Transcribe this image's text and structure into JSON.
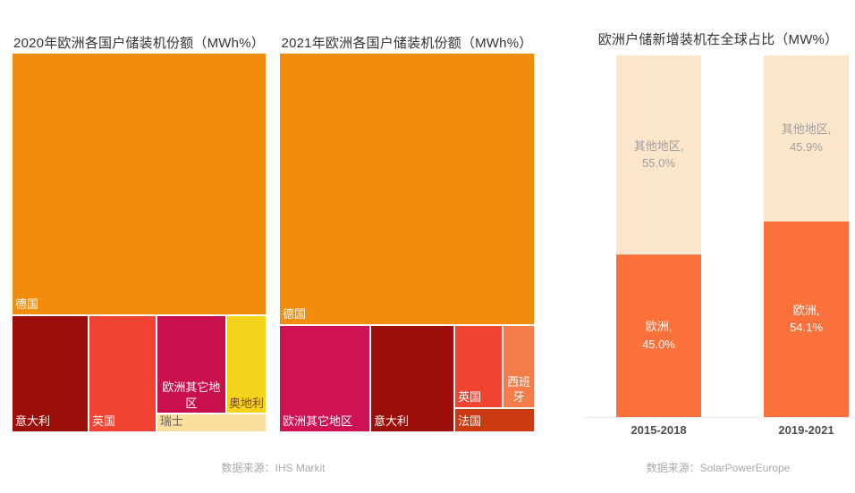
{
  "page": {
    "background": "#ffffff"
  },
  "footers": {
    "left": "数据来源：IHS Markit",
    "right": "数据来源：SolarPowerEurope"
  },
  "chart_data": [
    {
      "type": "treemap",
      "title": "2020年欧洲各国户储装机份额（MWh%）",
      "unit": "MWh%",
      "cells": [
        {
          "id": "germany",
          "label": "德国",
          "value": 69.0,
          "color": "#F28C0C",
          "text_color": "#FFFFFF"
        },
        {
          "id": "italy",
          "label": "意大利",
          "value": 9.1,
          "color": "#9E0E08",
          "text_color": "#FFFFFF"
        },
        {
          "id": "uk",
          "label": "英国",
          "value": 8.0,
          "color": "#F04331",
          "text_color": "#FFFFFF"
        },
        {
          "id": "other-europe",
          "label": "欧洲其它地区",
          "value": 6.9,
          "color": "#C8104E",
          "text_color": "#FFFFFF"
        },
        {
          "id": "austria",
          "label": "奥地利",
          "value": 3.9,
          "color": "#F4D41A",
          "text_color": "#7A4B22"
        },
        {
          "id": "switzerland",
          "label": "瑞士",
          "value": 1.9,
          "color": "#FADE9B",
          "text_color": "#6B6157"
        }
      ],
      "source": "数据来源：IHS Markit"
    },
    {
      "type": "treemap",
      "title": "2021年欧洲各国户储装机份额（MWh%）",
      "unit": "MWh%",
      "cells": [
        {
          "id": "germany",
          "label": "德国",
          "value": 71.6,
          "color": "#F28C0C",
          "text_color": "#FFFFFF"
        },
        {
          "id": "other-europe",
          "label": "欧洲其它地区",
          "value": 9.8,
          "color": "#CE1253",
          "text_color": "#FFFFFF"
        },
        {
          "id": "italy",
          "label": "意大利",
          "value": 9.0,
          "color": "#9E0E08",
          "text_color": "#FFFFFF"
        },
        {
          "id": "uk",
          "label": "英国",
          "value": 3.9,
          "color": "#F04331",
          "text_color": "#FFFFFF"
        },
        {
          "id": "spain",
          "label": "西班牙",
          "value": 2.6,
          "color": "#F57B49",
          "text_color": "#FFFFFF"
        },
        {
          "id": "france",
          "label": "法国",
          "value": 1.8,
          "color": "#CB3A10",
          "text_color": "#FFFFFF"
        }
      ],
      "source": "数据来源：IHS Markit"
    },
    {
      "type": "bar",
      "stacked": true,
      "title": "欧洲户储新增装机在全球占比（MW%）",
      "unit": "MW%",
      "categories": [
        "2015-2018",
        "2019-2021"
      ],
      "series": [
        {
          "id": "europe",
          "name": "欧洲",
          "values": [
            45.0,
            54.1
          ],
          "color": "#FA713C",
          "label_color": "#FFFFFF"
        },
        {
          "id": "other",
          "name": "其他地区",
          "values": [
            55.0,
            45.9
          ],
          "color": "#FBE5CB",
          "label_color": "#A0A0A0"
        }
      ],
      "ylim": [
        0,
        100
      ],
      "legend_position": "none",
      "grid": false,
      "source": "数据来源：SolarPowerEurope"
    }
  ]
}
